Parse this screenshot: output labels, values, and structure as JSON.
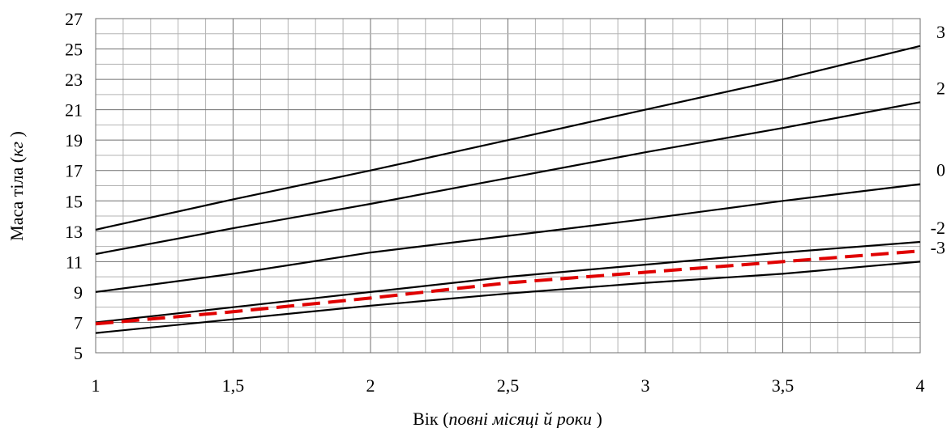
{
  "chart_data": {
    "type": "line",
    "xlabel": "Вік",
    "xlabel_italic": "повні місяці й роки",
    "ylabel": "Маса тіла",
    "ylabel_italic": "кг",
    "xlim": [
      1,
      4
    ],
    "ylim": [
      5,
      27
    ],
    "x_ticks": [
      1,
      1.5,
      2,
      2.5,
      3,
      3.5,
      4
    ],
    "x_tick_labels": [
      "1",
      "1,5",
      "2",
      "2,5",
      "3",
      "3,5",
      "4"
    ],
    "y_ticks": [
      5,
      7,
      9,
      11,
      13,
      15,
      17,
      19,
      21,
      23,
      25,
      27
    ],
    "y_tick_labels": [
      "5",
      "7",
      "9",
      "11",
      "13",
      "15",
      "17",
      "19",
      "21",
      "23",
      "25",
      "27"
    ],
    "grid": true,
    "x_minor_step": 0.1,
    "y_minor_step": 1,
    "series": [
      {
        "name": "3",
        "color": "#000000",
        "style": "solid",
        "x": [
          1,
          1.5,
          2,
          2.5,
          3,
          3.5,
          4
        ],
        "y": [
          13.1,
          15.1,
          17.0,
          19.0,
          21.0,
          23.0,
          25.2
        ]
      },
      {
        "name": "2",
        "color": "#000000",
        "style": "solid",
        "x": [
          1,
          1.5,
          2,
          2.5,
          3,
          3.5,
          4
        ],
        "y": [
          11.5,
          13.2,
          14.8,
          16.5,
          18.2,
          19.8,
          21.5
        ]
      },
      {
        "name": "0",
        "color": "#000000",
        "style": "solid",
        "x": [
          1,
          1.5,
          2,
          2.5,
          3,
          3.5,
          4
        ],
        "y": [
          9.0,
          10.2,
          11.6,
          12.7,
          13.8,
          15.0,
          16.1
        ]
      },
      {
        "name": "-2",
        "color": "#000000",
        "style": "solid",
        "x": [
          1,
          1.5,
          2,
          2.5,
          3,
          3.5,
          4
        ],
        "y": [
          7.0,
          8.0,
          9.0,
          10.0,
          10.8,
          11.6,
          12.3
        ]
      },
      {
        "name": "-3",
        "color": "#000000",
        "style": "solid",
        "x": [
          1,
          1.5,
          2,
          2.5,
          3,
          3.5,
          4
        ],
        "y": [
          6.3,
          7.2,
          8.1,
          8.9,
          9.6,
          10.2,
          11.0
        ]
      },
      {
        "color": "#e00000",
        "style": "dashed",
        "x": [
          1,
          1.5,
          2,
          2.5,
          3,
          3.5,
          4
        ],
        "y": [
          6.9,
          7.7,
          8.6,
          9.6,
          10.3,
          11.0,
          11.7
        ]
      }
    ]
  }
}
